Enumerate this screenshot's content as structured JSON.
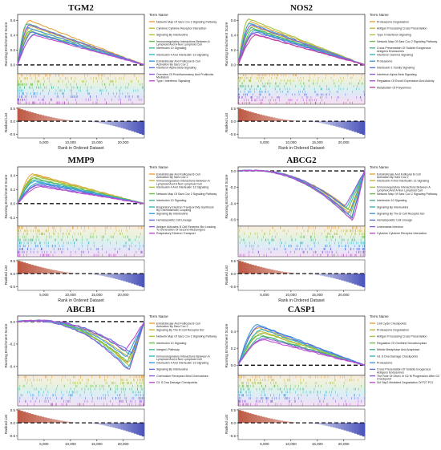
{
  "figure": {
    "axis_labels": {
      "es": "Running Enrichment Score",
      "ranked": "Ranked List",
      "x": "Rank in Ordered Dataset",
      "legend_title": "Term Name"
    },
    "x_ticks": [
      "5,000",
      "10,000",
      "15,000",
      "20,000"
    ],
    "x_tick_values": [
      5000,
      10000,
      15000,
      20000
    ],
    "ranked_ticks": [
      "0.5",
      "0.0",
      "-0.5"
    ]
  },
  "chart_data": [
    {
      "type": "line",
      "title": "TGM2",
      "xlabel": "Rank in Ordered Dataset",
      "ylabel": "Running Enrichment Score",
      "xlim": [
        0,
        24000
      ],
      "ylim": [
        -0.12,
        0.68
      ],
      "y_ticks": [
        "0.6",
        "0.4",
        "0.2",
        "0.0"
      ],
      "y_tick_values": [
        0.6,
        0.4,
        0.2,
        0.0
      ],
      "profile": "pos",
      "legend_title": "Term Name",
      "series": [
        {
          "name": "Network Map Of Sars Cov 2 Signaling Pathway",
          "color": "#e8a33a",
          "peak": 0.6,
          "peak_x": 2200
        },
        {
          "name": "Cytokine Cytokine Receptor Interaction",
          "color": "#c9b53a",
          "peak": 0.52,
          "peak_x": 2600
        },
        {
          "name": "Signaling By Interleukins",
          "color": "#a6c23c",
          "peak": 0.48,
          "peak_x": 3000
        },
        {
          "name": "Immunoregulatory Interactions Between A Lymphoid And A Non Lymphoid Cell",
          "color": "#6bbf4c",
          "peak": 0.46,
          "peak_x": 2400
        },
        {
          "name": "Interleukin 10 Signaling",
          "color": "#3fb98a",
          "peak": 0.56,
          "peak_x": 1800
        },
        {
          "name": "Interleukin 4 And Interleukin 13 Signaling",
          "color": "#34b7c2",
          "peak": 0.42,
          "peak_x": 3400
        },
        {
          "name": "Extrafollicular And Follicular B Cell Activation By Sars Cov 2",
          "color": "#3d9be0",
          "peak": 0.5,
          "peak_x": 2000
        },
        {
          "name": "Interferon Alpha Beta Signaling",
          "color": "#5a72e0",
          "peak": 0.44,
          "peak_x": 2800
        },
        {
          "name": "Overview Of Proinflammatory And Profibrotic Mediators",
          "color": "#8b5bd9",
          "peak": 0.54,
          "peak_x": 2300
        },
        {
          "name": "Type I Interferon Signaling",
          "color": "#c04fd0",
          "peak": 0.4,
          "peak_x": 3200
        }
      ]
    },
    {
      "type": "line",
      "title": "NOS2",
      "xlabel": "Rank in Ordered Dataset",
      "ylabel": "Running Enrichment Score",
      "xlim": [
        0,
        24000
      ],
      "ylim": [
        -0.12,
        0.68
      ],
      "y_ticks": [
        "0.6",
        "0.4",
        "0.2",
        "0.0"
      ],
      "y_tick_values": [
        0.6,
        0.4,
        0.2,
        0.0
      ],
      "profile": "pos",
      "legend_title": "Term Name",
      "series": [
        {
          "name": "Proteasome Degradation",
          "color": "#e8a33a",
          "peak": 0.58,
          "peak_x": 2400
        },
        {
          "name": "Antigen Processing Cross Presentation",
          "color": "#c9b53a",
          "peak": 0.52,
          "peak_x": 2800
        },
        {
          "name": "Type Ii Interferon Signaling",
          "color": "#a6c23c",
          "peak": 0.62,
          "peak_x": 2000
        },
        {
          "name": "Network Map Of Sars Cov 2 Signaling Pathway",
          "color": "#6bbf4c",
          "peak": 0.48,
          "peak_x": 3000
        },
        {
          "name": "Cross Presentation Of Soluble Exogenous Antigens Endosomes",
          "color": "#3fb98a",
          "peak": 0.5,
          "peak_x": 2600
        },
        {
          "name": "Interferon Gamma Signaling",
          "color": "#34b7c2",
          "peak": 0.56,
          "peak_x": 2200
        },
        {
          "name": "Proteasome",
          "color": "#3d9be0",
          "peak": 0.46,
          "peak_x": 3200
        },
        {
          "name": "Interleukin 1 Family Signaling",
          "color": "#5a72e0",
          "peak": 0.44,
          "peak_x": 3400
        },
        {
          "name": "Interferon Alpha Beta Signaling",
          "color": "#8b5bd9",
          "peak": 0.54,
          "peak_x": 2500
        },
        {
          "name": "Regulation Of Runx3 Expression And Activity",
          "color": "#b04fd0",
          "peak": 0.42,
          "peak_x": 3000
        },
        {
          "name": "Metabolism Of Polyamines",
          "color": "#c24aa0",
          "peak": 0.4,
          "peak_x": 3600
        }
      ]
    },
    {
      "type": "line",
      "title": "MMP9",
      "xlabel": "Rank in Ordered Dataset",
      "ylabel": "Running Enrichment Score",
      "xlim": [
        0,
        24000
      ],
      "ylim": [
        -0.32,
        0.52
      ],
      "y_ticks": [
        "0.4",
        "0.2",
        "0.0",
        "-0.2"
      ],
      "y_tick_values": [
        0.4,
        0.2,
        0.0,
        -0.2
      ],
      "profile": "pos",
      "legend_title": "Term Name",
      "series": [
        {
          "name": "Extrafollicular And Follicular B Cell Activation By Sars Cov 2",
          "color": "#e8a33a",
          "peak": 0.42,
          "peak_x": 3000
        },
        {
          "name": "Immunoregulatory Interactions Between A Lymphoid And A Non Lymphoid Cell",
          "color": "#c9b53a",
          "peak": 0.4,
          "peak_x": 3400
        },
        {
          "name": "Interleukin 4 And Interleukin 13 Signaling",
          "color": "#a6c23c",
          "peak": 0.38,
          "peak_x": 3800
        },
        {
          "name": "Network Map Of Sars Cov 2 Signaling Pathway",
          "color": "#6bbf4c",
          "peak": 0.36,
          "peak_x": 3200
        },
        {
          "name": "Interleukin 10 Signaling",
          "color": "#3fb98a",
          "peak": 0.34,
          "peak_x": 3600
        },
        {
          "name": "Respiratory Electron Transport Atp Synthesis By Chemiosmotic Coupling",
          "color": "#34b7c2",
          "peak": 0.3,
          "peak_x": 4000
        },
        {
          "name": "Signaling By Interleukins",
          "color": "#3d9be0",
          "peak": 0.32,
          "peak_x": 3500
        },
        {
          "name": "Hematopoietic Cell Lineage",
          "color": "#5a72e0",
          "peak": 0.28,
          "peak_x": 4200
        },
        {
          "name": "Antigen Activates B Cell Receptor Bcr Leading To Generation Of Second Messengers",
          "color": "#8b5bd9",
          "peak": 0.26,
          "peak_x": 3900
        },
        {
          "name": "Respiratory Electron Transport",
          "color": "#c04fd0",
          "peak": 0.24,
          "peak_x": 4400
        }
      ]
    },
    {
      "type": "line",
      "title": "ABCG2",
      "xlabel": "Rank in Ordered Dataset",
      "ylabel": "Running Enrichment Score",
      "xlim": [
        0,
        24000
      ],
      "ylim": [
        -0.68,
        0.05
      ],
      "y_ticks": [
        "0.0",
        "-0.2",
        "-0.4",
        "-0.6"
      ],
      "y_tick_values": [
        0.0,
        -0.2,
        -0.4,
        -0.6
      ],
      "profile": "neg",
      "legend_title": "Term Name",
      "series": [
        {
          "name": "Extrafollicular And Follicular B Cell Activation By Sars Cov 2",
          "color": "#e8a33a",
          "peak": -0.52,
          "peak_x": 21000
        },
        {
          "name": "Interleukin 4 And Interleukin 13 Signaling",
          "color": "#c9b53a",
          "peak": -0.5,
          "peak_x": 21500
        },
        {
          "name": "Immunoregulatory Interactions Between A Lymphoid And A Non Lymphoid Cell",
          "color": "#a6c23c",
          "peak": -0.56,
          "peak_x": 21200
        },
        {
          "name": "Network Map Of Sars Cov 2 Signaling Pathway",
          "color": "#6bbf4c",
          "peak": -0.48,
          "peak_x": 20800
        },
        {
          "name": "Interleukin 10 Signaling",
          "color": "#3fb98a",
          "peak": -0.6,
          "peak_x": 21400
        },
        {
          "name": "Signaling By Interleukins",
          "color": "#34b7c2",
          "peak": -0.46,
          "peak_x": 20500
        },
        {
          "name": "Signaling By The B Cell Receptor Bcr",
          "color": "#3d9be0",
          "peak": -0.54,
          "peak_x": 21000
        },
        {
          "name": "Hematopoietic Cell Lineage",
          "color": "#5a72e0",
          "peak": -0.58,
          "peak_x": 21600
        },
        {
          "name": "Leishmania Infection",
          "color": "#8b5bd9",
          "peak": -0.44,
          "peak_x": 20200
        },
        {
          "name": "Cytokine Cytokine Receptor Interaction",
          "color": "#c04fd0",
          "peak": -0.62,
          "peak_x": 21800
        }
      ]
    },
    {
      "type": "line",
      "title": "ABCB1",
      "xlabel": "Rank in Ordered Dataset",
      "ylabel": "Running Enrichment Score",
      "xlim": [
        0,
        24000
      ],
      "ylim": [
        -0.48,
        0.05
      ],
      "y_ticks": [
        "0.0",
        "-0.2",
        "-0.4"
      ],
      "y_tick_values": [
        0.0,
        -0.2,
        -0.4
      ],
      "profile": "neg",
      "legend_title": "Term Name",
      "series": [
        {
          "name": "Extrafollicular And Follicular B Cell Activation By Sars Cov 2",
          "color": "#e8a33a",
          "peak": -0.38,
          "peak_x": 21000
        },
        {
          "name": "Signaling By The B Cell Receptor Bcr",
          "color": "#c9b53a",
          "peak": -0.34,
          "peak_x": 21500
        },
        {
          "name": "Network Map Of Sars Cov 2 Signaling Pathway",
          "color": "#a6c23c",
          "peak": -0.4,
          "peak_x": 21200
        },
        {
          "name": "Interleukin 10 Signaling",
          "color": "#6bbf4c",
          "peak": -0.36,
          "peak_x": 20800
        },
        {
          "name": "Integrin1 Pathway",
          "color": "#3fb98a",
          "peak": -0.3,
          "peak_x": 21400
        },
        {
          "name": "Immunoregulatory Interactions Between A Lymphoid And A Non Lymphoid Cell",
          "color": "#34b7c2",
          "peak": -0.42,
          "peak_x": 21000
        },
        {
          "name": "Interleukin 4 And Interleukin 13 Signaling",
          "color": "#3d9be0",
          "peak": -0.32,
          "peak_x": 20600
        },
        {
          "name": "Signaling By Interleukins",
          "color": "#5a72e0",
          "peak": -0.28,
          "peak_x": 21600
        },
        {
          "name": "Chemokine Receptors Bind Chemokines",
          "color": "#8b5bd9",
          "peak": -0.44,
          "peak_x": 21100
        },
        {
          "name": "G1 S Dna Damage Checkpoints",
          "color": "#c04fd0",
          "peak": -0.26,
          "peak_x": 20400
        }
      ]
    },
    {
      "type": "line",
      "title": "CASP1",
      "xlabel": "Rank in Ordered Dataset",
      "ylabel": "Running Enrichment Score",
      "xlim": [
        0,
        24000
      ],
      "ylim": [
        -0.12,
        0.58
      ],
      "y_ticks": [
        "0.4",
        "0.2",
        "0.0"
      ],
      "y_tick_values": [
        0.4,
        0.2,
        0.0
      ],
      "profile": "pos",
      "legend_title": "Term Name",
      "series": [
        {
          "name": "Cell Cycle Checkpoints",
          "color": "#e8a33a",
          "peak": 0.44,
          "peak_x": 4000
        },
        {
          "name": "Proteasome Degradation",
          "color": "#c9b53a",
          "peak": 0.4,
          "peak_x": 4400
        },
        {
          "name": "Antigen Processing Cross Presentation",
          "color": "#a6c23c",
          "peak": 0.38,
          "peak_x": 4800
        },
        {
          "name": "Regulation Of Ornithine Decarboxylase",
          "color": "#6bbf4c",
          "peak": 0.36,
          "peak_x": 4200
        },
        {
          "name": "Mitotic Metaphase And Anaphase",
          "color": "#3fb98a",
          "peak": 0.34,
          "peak_x": 5000
        },
        {
          "name": "G1 S Dna Damage Checkpoints",
          "color": "#34b7c2",
          "peak": 0.42,
          "peak_x": 4600
        },
        {
          "name": "Proteasome",
          "color": "#3d9be0",
          "peak": 0.48,
          "peak_x": 3800
        },
        {
          "name": "Cross Presentation Of Soluble Exogenous Antigens Endosomes",
          "color": "#5a72e0",
          "peak": 0.46,
          "peak_x": 4100
        },
        {
          "name": "The Role Of Gtse1 In G2 M Progression After G2 Checkpoint",
          "color": "#8b5bd9",
          "peak": 0.32,
          "peak_x": 5200
        },
        {
          "name": "Scf Skp2 Mediated Degradation Of P27 P21",
          "color": "#c04fd0",
          "peak": 0.3,
          "peak_x": 4900
        }
      ]
    }
  ]
}
